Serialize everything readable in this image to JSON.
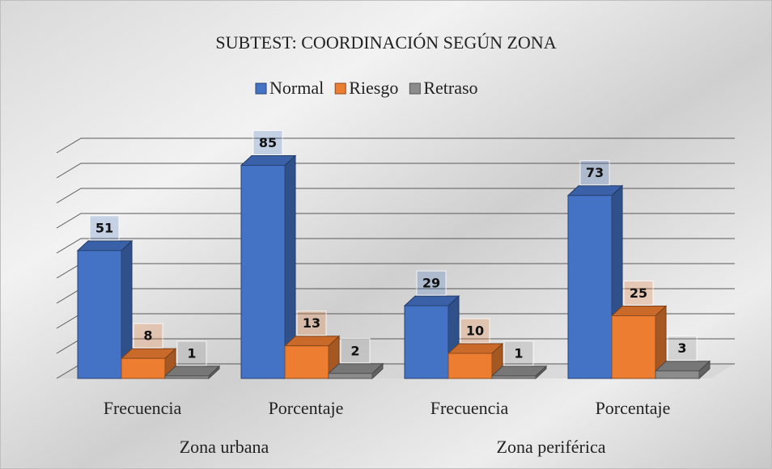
{
  "chart_data": {
    "type": "bar3d",
    "title": "SUBTEST: COORDINACIÓN SEGÚN ZONA",
    "categories": [
      "Frecuencia",
      "Porcentaje",
      "Frecuencia",
      "Porcentaje"
    ],
    "category_groups": [
      "Zona urbana",
      "Zona urbana",
      "Zona periférica",
      "Zona periférica"
    ],
    "series": [
      {
        "name": "Normal",
        "color": "#4472c4",
        "values": [
          51,
          85,
          29,
          73
        ]
      },
      {
        "name": "Riesgo",
        "color": "#ed7d31",
        "values": [
          8,
          13,
          10,
          25
        ]
      },
      {
        "name": "Retraso",
        "color": "#8c8c8c",
        "values": [
          1,
          2,
          1,
          3
        ]
      }
    ],
    "ylim": [
      0,
      90
    ],
    "yticks": [
      0,
      10,
      20,
      30,
      40,
      50,
      60,
      70,
      80,
      90
    ],
    "grid": true,
    "legend": "top"
  }
}
